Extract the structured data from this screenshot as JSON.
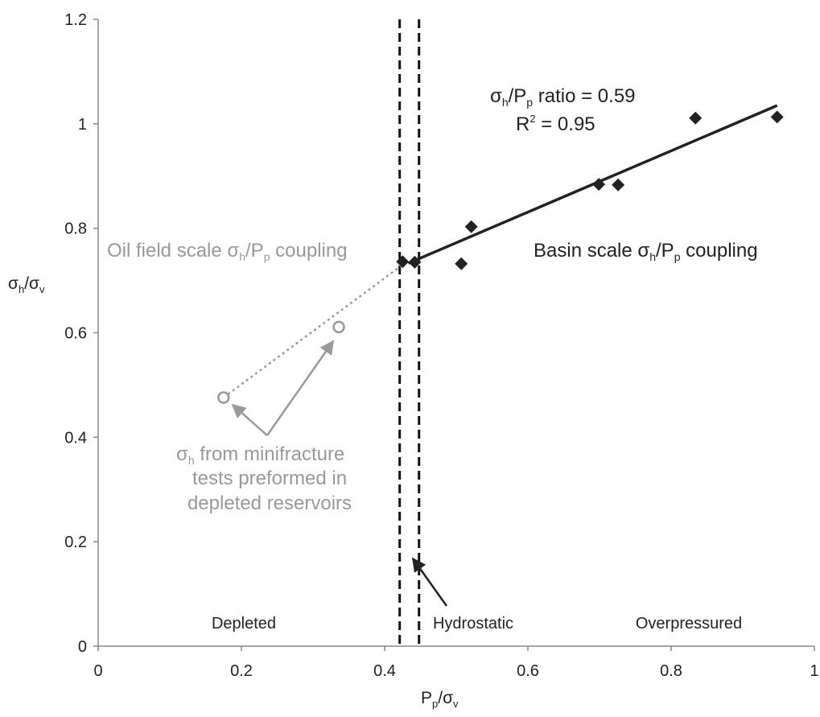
{
  "chart_data": {
    "type": "scatter",
    "xlabel": "P",
    "xlabel_sub": "p",
    "xlabel_tail": "/σ",
    "xlabel_sub2": "v",
    "ylabel": "σ",
    "ylabel_sub": "h",
    "ylabel_tail": "/σ",
    "ylabel_sub2": "v",
    "xlim": [
      0,
      1
    ],
    "ylim": [
      0,
      1.2
    ],
    "x_ticks": [
      "0",
      "0.2",
      "0.4",
      "0.6",
      "0.8",
      "1"
    ],
    "y_ticks": [
      "0",
      "0.2",
      "0.4",
      "0.6",
      "0.8",
      "1",
      "1.2"
    ],
    "grid": false,
    "series": [
      {
        "name": "Basin scale",
        "marker": "diamond",
        "color": "#222222",
        "x": [
          0.425,
          0.442,
          0.507,
          0.521,
          0.699,
          0.726,
          0.834,
          0.948
        ],
        "y": [
          0.736,
          0.735,
          0.732,
          0.803,
          0.884,
          0.883,
          1.011,
          1.013
        ]
      },
      {
        "name": "Minifracture tests",
        "marker": "open-circle",
        "color": "#999999",
        "x": [
          0.175,
          0.336
        ],
        "y": [
          0.476,
          0.611
        ]
      }
    ],
    "fit_line": {
      "x": [
        0.433,
        0.948
      ],
      "y": [
        0.733,
        1.035
      ]
    },
    "dotted_line": {
      "x": [
        0.175,
        0.425
      ],
      "y": [
        0.476,
        0.73
      ]
    },
    "dashed_vlines": [
      0.421,
      0.448
    ],
    "annotations": {
      "ratio": {
        "sigma": "σ",
        "h": "h",
        "mid": "/P",
        "p": "p",
        "tail": " ratio = 0.59"
      },
      "r2": {
        "r": "R",
        "sup": "2",
        "tail": " = 0.95"
      },
      "oil": {
        "head": "Oil field scale σ",
        "h": "h",
        "mid": "/P",
        "p": "p",
        "tail": " coupling"
      },
      "basin": {
        "head": "Basin scale σ",
        "h": "h",
        "mid": "/P",
        "p": "p",
        "tail": " coupling"
      },
      "minifrac": {
        "sigma": "σ",
        "h": "h",
        "line1_tail": " from minifracture",
        "line2": "tests preformed in",
        "line3": "depleted reservoirs"
      },
      "regions": {
        "depleted": "Depleted",
        "hydrostatic": "Hydrostatic",
        "overpressured": "Overpressured"
      }
    },
    "colors": {
      "main": "#222222",
      "secondary": "#999999",
      "axis": "#888888"
    }
  }
}
